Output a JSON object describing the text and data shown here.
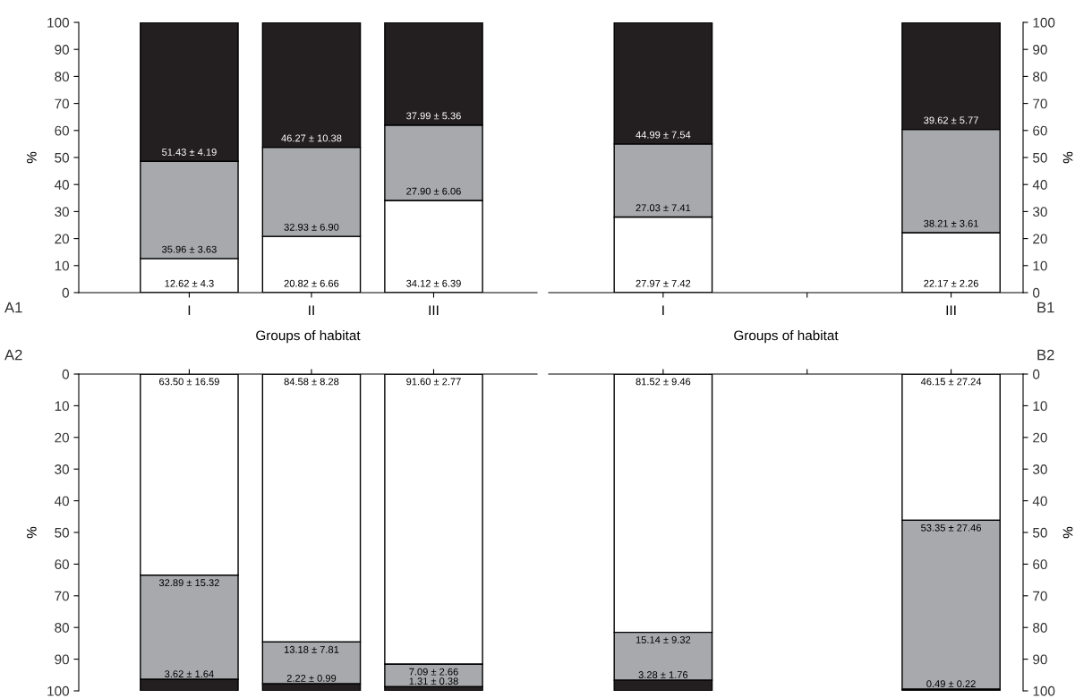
{
  "chart_data": [
    {
      "type": "bar",
      "stacked": true,
      "categories": [
        "I",
        "II",
        "III"
      ],
      "xlabel": "Groups of habitat",
      "ylabel": "%",
      "ylim": [
        0,
        100
      ],
      "yticks": [
        0,
        10,
        20,
        30,
        40,
        50,
        60,
        70,
        80,
        90,
        100
      ],
      "annotations": [
        "A1"
      ],
      "grid": false,
      "legend": false,
      "series": [
        {
          "color": "#ffffff",
          "values": [
            12.62,
            20.82,
            34.12
          ],
          "value_labels": [
            "12.62 ± 4.3",
            "20.82 ± 6.66",
            "34.12 ± 6.39"
          ]
        },
        {
          "color": "#a7a9ac",
          "values": [
            35.96,
            32.93,
            27.9
          ],
          "value_labels": [
            "35.96 ± 3.63",
            "32.93 ± 6.90",
            "27.90 ± 6.06"
          ]
        },
        {
          "color": "#231f20",
          "values": [
            51.43,
            46.27,
            37.99
          ],
          "value_labels": [
            "51.43 ± 4.19",
            "46.27 ± 10.38",
            "37.99 ± 5.36"
          ]
        }
      ]
    },
    {
      "type": "bar",
      "stacked": true,
      "categories": [
        "I",
        null,
        "III"
      ],
      "xlabel": "Groups of habitat",
      "ylabel": "%",
      "ylim": [
        0,
        100
      ],
      "yticks": [
        0,
        10,
        20,
        30,
        40,
        50,
        60,
        70,
        80,
        90,
        100
      ],
      "annotations": [
        "B1"
      ],
      "grid": false,
      "legend": false,
      "series": [
        {
          "color": "#ffffff",
          "values": [
            27.97,
            null,
            22.17
          ],
          "value_labels": [
            "27.97 ± 7.42",
            null,
            "22.17 ± 2.26"
          ]
        },
        {
          "color": "#a7a9ac",
          "values": [
            27.03,
            null,
            38.21
          ],
          "value_labels": [
            "27.03 ± 7.41",
            null,
            "38.21 ± 3.61"
          ]
        },
        {
          "color": "#231f20",
          "values": [
            44.99,
            null,
            39.62
          ],
          "value_labels": [
            "44.99 ± 7.54",
            null,
            "39.62 ± 5.77"
          ]
        }
      ]
    },
    {
      "type": "bar",
      "stacked": true,
      "categories": [
        null,
        null,
        null
      ],
      "ylabel": "%",
      "ylim": [
        100,
        0
      ],
      "yticks": [
        0,
        10,
        20,
        30,
        40,
        50,
        60,
        70,
        80,
        90,
        100
      ],
      "annotations": [
        "A2"
      ],
      "grid": false,
      "legend": false,
      "series": [
        {
          "color": "#ffffff",
          "values": [
            63.5,
            84.58,
            91.6
          ],
          "value_labels": [
            "63.50 ± 16.59",
            "84.58 ± 8.28",
            "91.60 ± 2.77"
          ]
        },
        {
          "color": "#a7a9ac",
          "values": [
            32.89,
            13.18,
            7.09
          ],
          "value_labels": [
            "32.89 ± 15.32",
            "13.18 ± 7.81",
            "7.09 ± 2.66"
          ]
        },
        {
          "color": "#231f20",
          "values": [
            3.62,
            2.22,
            1.31
          ],
          "value_labels": [
            "3.62 ± 1.64",
            "2.22 ± 0.99",
            "1.31 ± 0.38"
          ]
        }
      ]
    },
    {
      "type": "bar",
      "stacked": true,
      "categories": [
        null,
        null,
        null
      ],
      "ylabel": "%",
      "ylim": [
        100,
        0
      ],
      "yticks": [
        0,
        10,
        20,
        30,
        40,
        50,
        60,
        70,
        80,
        90,
        100
      ],
      "annotations": [
        "B2"
      ],
      "grid": false,
      "legend": false,
      "series": [
        {
          "color": "#ffffff",
          "values": [
            81.52,
            null,
            46.15
          ],
          "value_labels": [
            "81.52 ± 9.46",
            null,
            "46.15 ± 27.24"
          ]
        },
        {
          "color": "#a7a9ac",
          "values": [
            15.14,
            null,
            53.35
          ],
          "value_labels": [
            "15.14 ± 9.32",
            null,
            "53.35 ± 27.46"
          ]
        },
        {
          "color": "#231f20",
          "values": [
            3.28,
            null,
            0.49
          ],
          "value_labels": [
            "3.28 ± 1.76",
            null,
            "0.49 ± 0.22"
          ]
        }
      ]
    }
  ]
}
